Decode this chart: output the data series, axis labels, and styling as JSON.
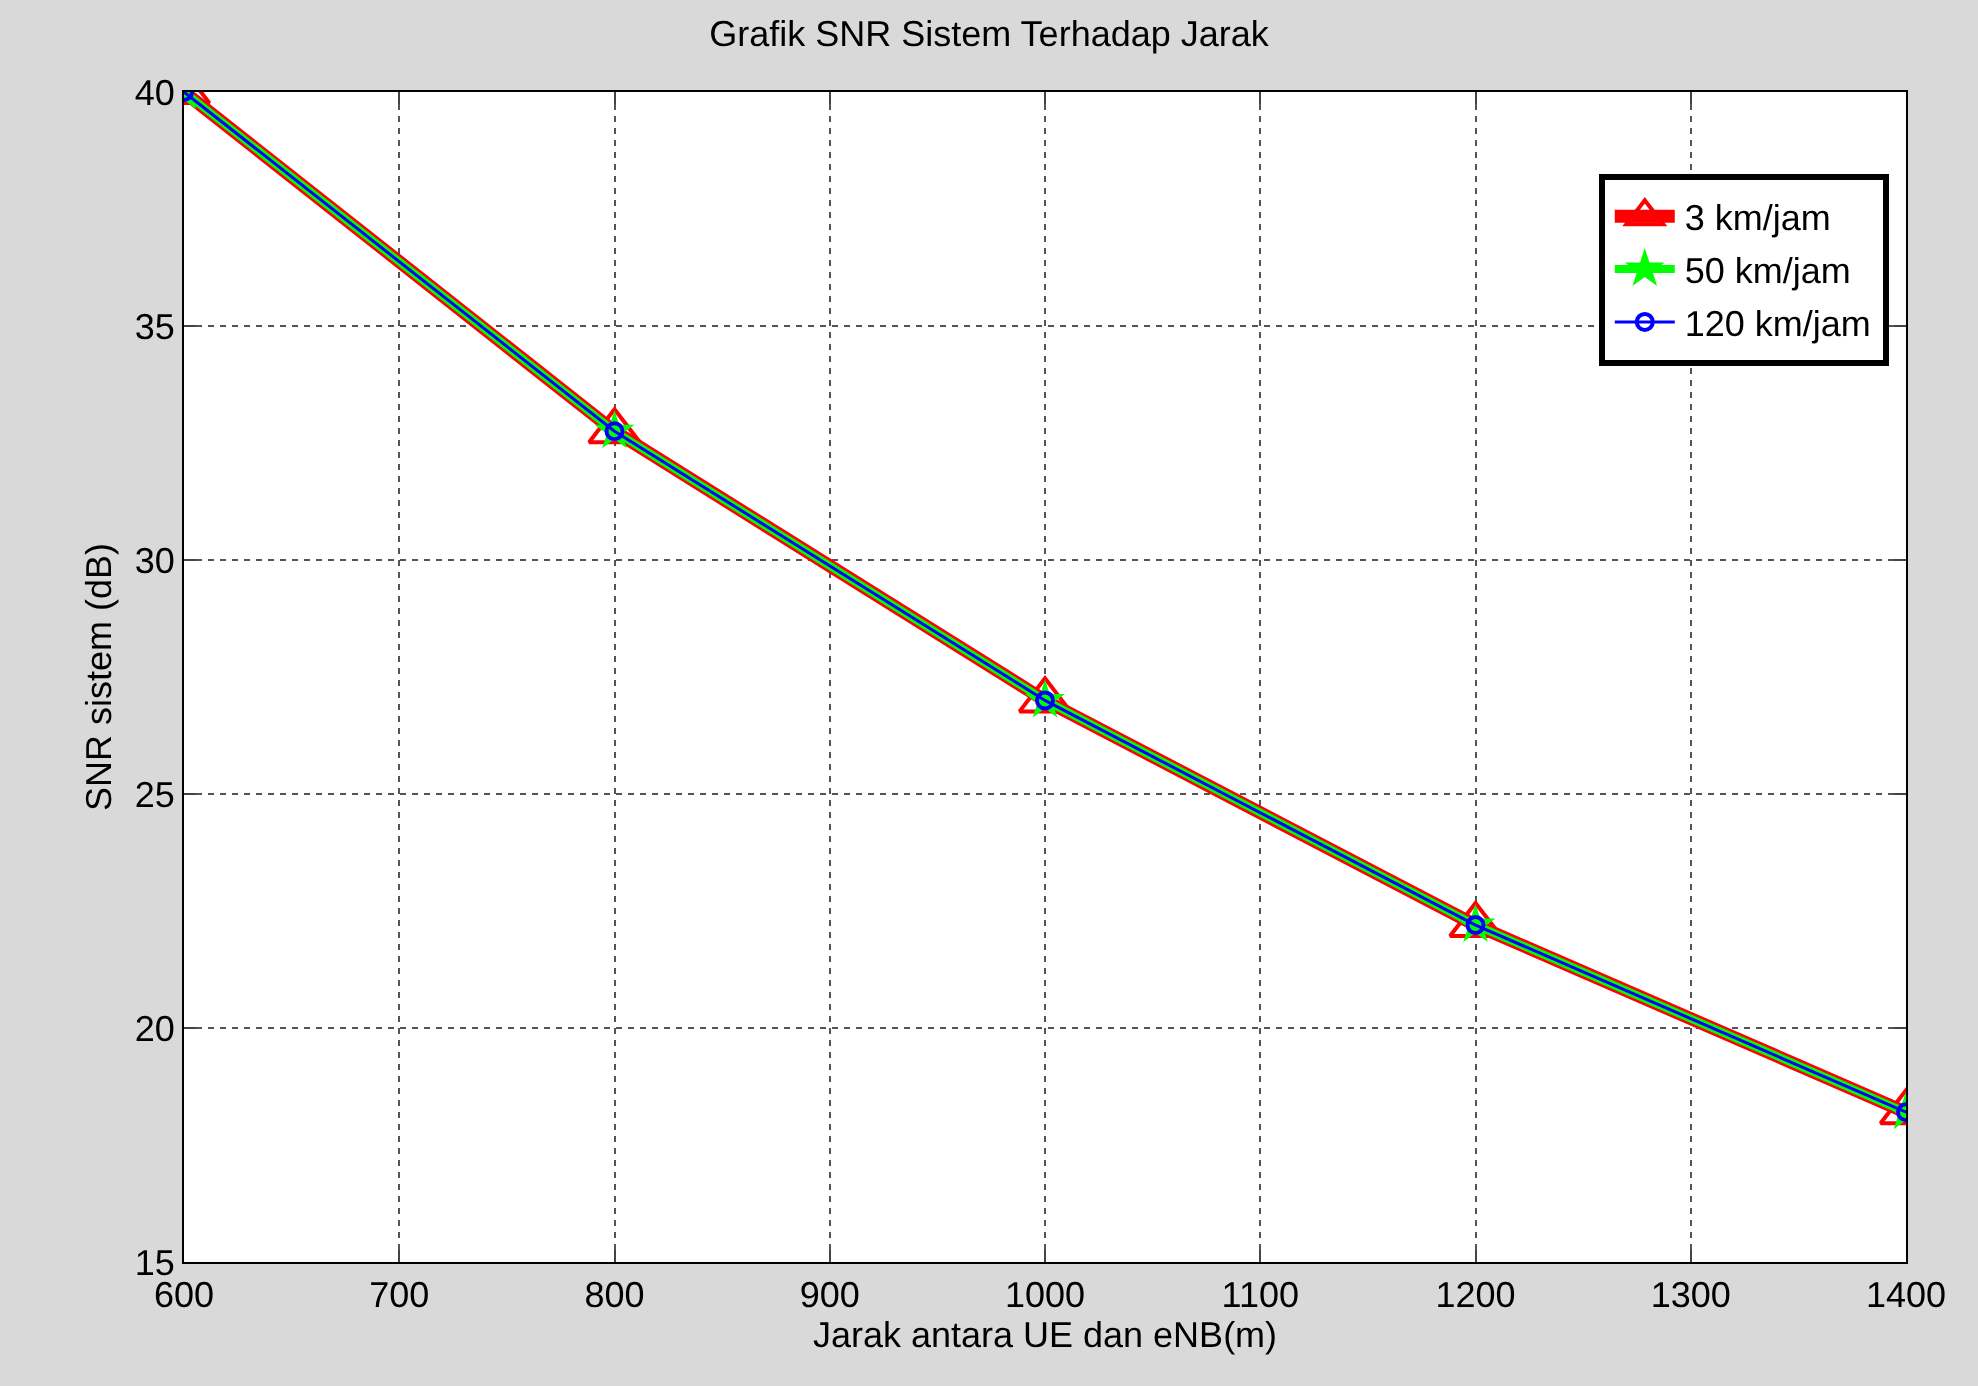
{
  "chart_data": {
    "type": "line",
    "title": "Grafik SNR Sistem Terhadap Jarak",
    "xlabel": "Jarak antara UE dan eNB(m)",
    "ylabel": "SNR sistem (dB)",
    "x": [
      600,
      800,
      1000,
      1200,
      1400
    ],
    "series": [
      {
        "name": "3 km/jam",
        "color": "#ff0000",
        "marker": "triangle",
        "values": [
          40,
          32.75,
          27,
          22.2,
          18.2
        ]
      },
      {
        "name": "50 km/jam",
        "color": "#00ff00",
        "marker": "star",
        "values": [
          40,
          32.75,
          27,
          22.2,
          18.2
        ]
      },
      {
        "name": "120 km/jam",
        "color": "#0000ff",
        "marker": "circle",
        "values": [
          40,
          32.75,
          27,
          22.2,
          18.2
        ]
      }
    ],
    "xlim": [
      600,
      1400
    ],
    "xticks": [
      600,
      700,
      800,
      900,
      1000,
      1100,
      1200,
      1300,
      1400
    ],
    "ylim": [
      15,
      40
    ],
    "yticks": [
      15,
      20,
      25,
      30,
      35,
      40
    ],
    "grid": true,
    "legend": "top right",
    "line_style": "solid"
  }
}
